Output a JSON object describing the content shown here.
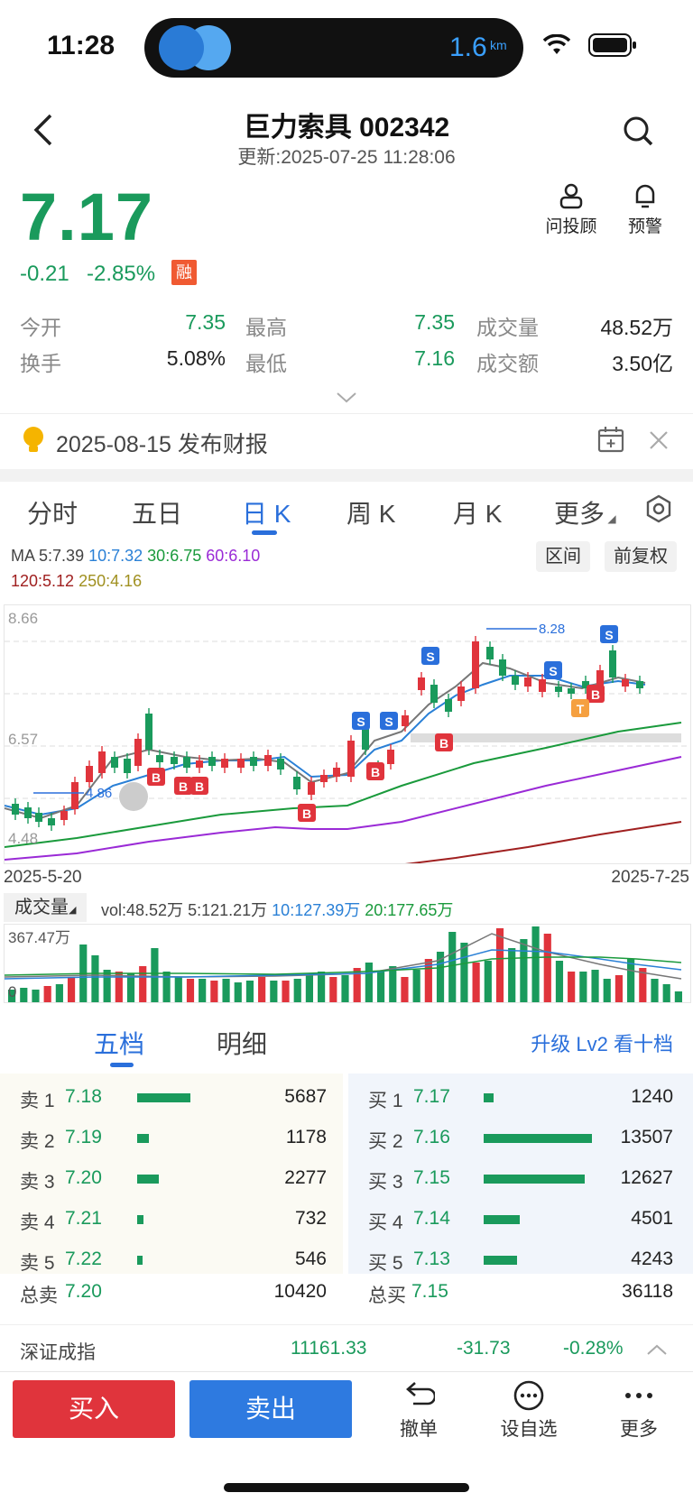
{
  "status_bar": {
    "time": "11:28",
    "distance": "1.6",
    "distance_unit": "km"
  },
  "header": {
    "title": "巨力索具 002342",
    "update_time": "更新:2025-07-25 11:28:06"
  },
  "quote": {
    "price": "7.17",
    "change": "-0.21",
    "change_pct": "-2.85%",
    "margin_badge": "融",
    "advisor_label": "问投顾",
    "alert_label": "预警",
    "open_label": "今开",
    "open": "7.35",
    "turnover_label": "换手",
    "turnover": "5.08%",
    "high_label": "最高",
    "high": "7.35",
    "low_label": "最低",
    "low": "7.16",
    "volume_label": "成交量",
    "volume": "48.52万",
    "amount_label": "成交额",
    "amount": "3.50亿"
  },
  "notice": {
    "text": "2025-08-15 发布财报"
  },
  "chart_tabs": [
    "分时",
    "五日",
    "日 K",
    "周 K",
    "月 K",
    "更多"
  ],
  "ma": {
    "prefix": "MA",
    "ma5": "5:7.39",
    "ma10": "10:7.32",
    "ma30": "30:6.75",
    "ma60": "60:6.10",
    "ma120": "120:5.12",
    "ma250": "250:4.16",
    "range_btn": "区间",
    "adjust_btn": "前复权"
  },
  "kline": {
    "y_top": "8.66",
    "y_mid": "6.57",
    "y_bot": "4.48",
    "max_label": "8.28",
    "min_label": "4.86",
    "date_start": "2025-5-20",
    "date_end": "2025-7-25"
  },
  "volume": {
    "btn": "成交量",
    "vol": "vol:48.52万",
    "v5": "5:121.21万",
    "v10": "10:127.39万",
    "v20": "20:177.65万",
    "y_top": "367.47万",
    "y_bot": "0"
  },
  "orderbook": {
    "tab1": "五档",
    "tab2": "明细",
    "upgrade": "升级 Lv2 看十档",
    "sells": [
      {
        "label": "卖 1",
        "price": "7.18",
        "vol": "5687",
        "ratio": 0.42
      },
      {
        "label": "卖 2",
        "price": "7.19",
        "vol": "1178",
        "ratio": 0.09
      },
      {
        "label": "卖 3",
        "price": "7.20",
        "vol": "2277",
        "ratio": 0.17
      },
      {
        "label": "卖 4",
        "price": "7.21",
        "vol": "732",
        "ratio": 0.05
      },
      {
        "label": "卖 5",
        "price": "7.22",
        "vol": "546",
        "ratio": 0.04
      }
    ],
    "buys": [
      {
        "label": "买 1",
        "price": "7.17",
        "vol": "1240",
        "ratio": 0.09
      },
      {
        "label": "买 2",
        "price": "7.16",
        "vol": "13507",
        "ratio": 1.0
      },
      {
        "label": "买 3",
        "price": "7.15",
        "vol": "12627",
        "ratio": 0.93
      },
      {
        "label": "买 4",
        "price": "7.14",
        "vol": "4501",
        "ratio": 0.33
      },
      {
        "label": "买 5",
        "price": "7.13",
        "vol": "4243",
        "ratio": 0.31
      }
    ],
    "total_sell_label": "总卖",
    "total_sell_price": "7.20",
    "total_sell_vol": "10420",
    "total_buy_label": "总买",
    "total_buy_price": "7.15",
    "total_buy_vol": "36118"
  },
  "index": {
    "name": "深证成指",
    "value": "11161.33",
    "change": "-31.73",
    "pct": "-0.28%"
  },
  "bottom_bar": {
    "buy": "买入",
    "sell": "卖出",
    "cancel": "撤单",
    "watch": "设自选",
    "more": "更多"
  },
  "colors": {
    "up": "#e0343c",
    "down": "#1a9a5c",
    "accent": "#2a6fdb"
  }
}
